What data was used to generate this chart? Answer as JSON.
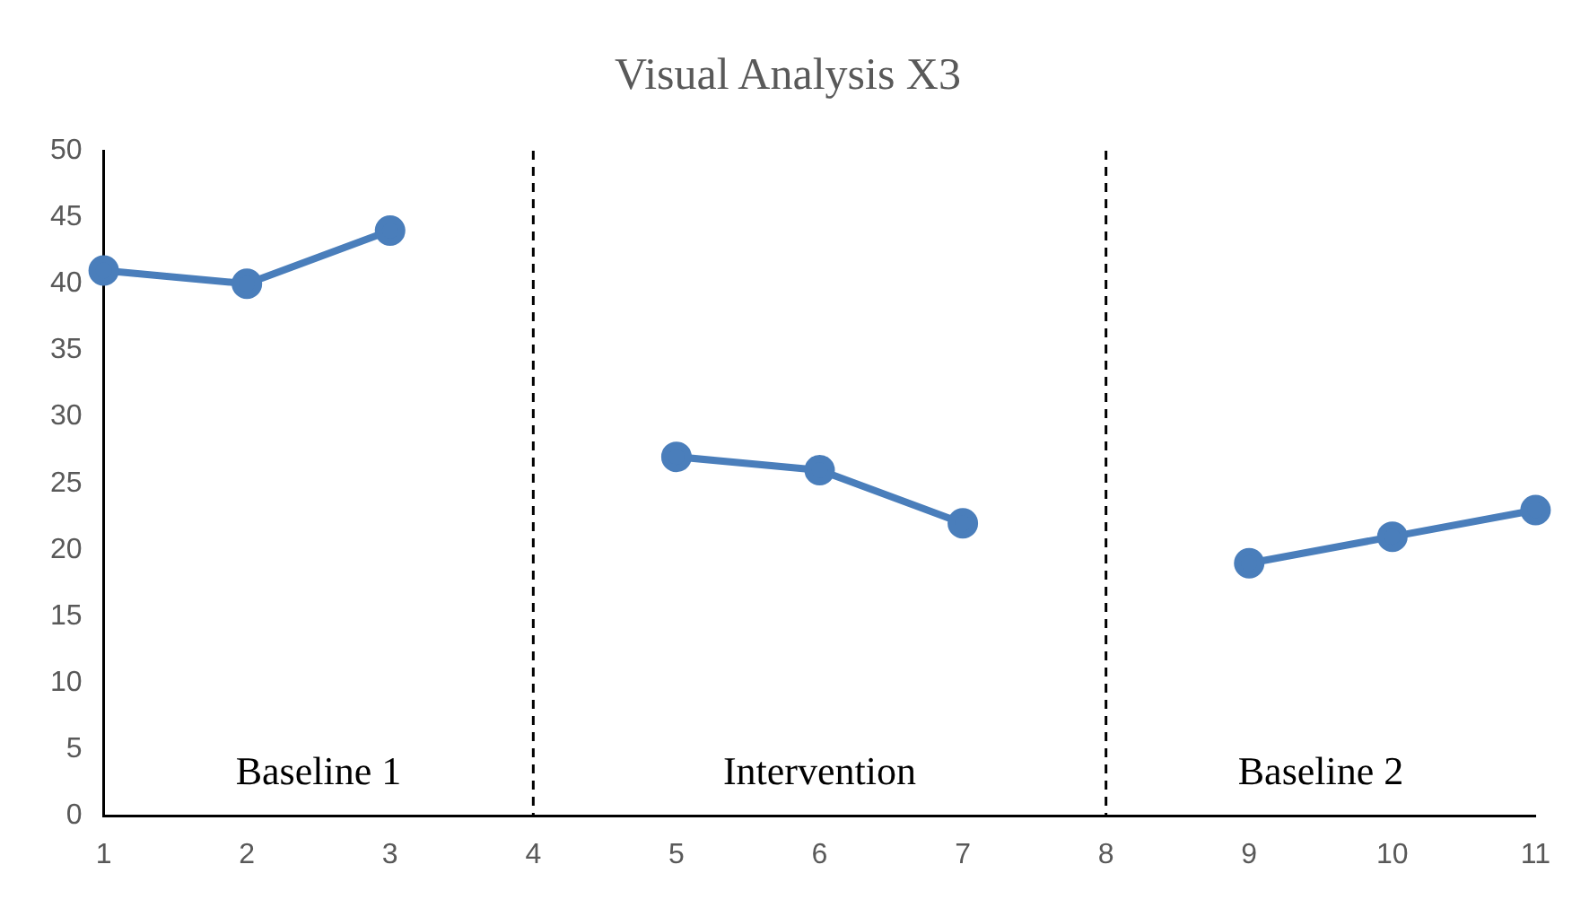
{
  "chart_data": {
    "type": "line",
    "title": "Visual Analysis X3",
    "categories": [
      "1",
      "2",
      "3",
      "4",
      "5",
      "6",
      "7",
      "8",
      "9",
      "10",
      "11"
    ],
    "series": [
      {
        "color": "#4a7ebb",
        "values": [
          41,
          40,
          44,
          null,
          27,
          26,
          22,
          null,
          19,
          21,
          23
        ]
      }
    ],
    "ylim": [
      0,
      50
    ],
    "yticks": [
      0,
      5,
      10,
      15,
      20,
      25,
      30,
      35,
      40,
      45,
      50
    ],
    "ref_lines": [
      {
        "axis": "x",
        "value": "4",
        "color": "#000000",
        "line_style": "dashed"
      },
      {
        "axis": "x",
        "value": "8",
        "color": "#000000",
        "line_style": "dashed"
      }
    ],
    "annotations": [
      "Baseline 1",
      "Intervention",
      "Baseline 2"
    ],
    "grid": false,
    "legend": false,
    "marker": "circle",
    "line_style": "solid"
  }
}
